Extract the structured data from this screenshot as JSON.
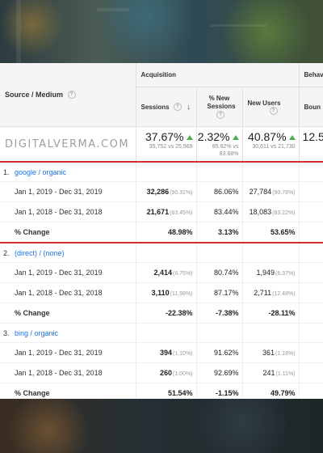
{
  "header": {
    "source_medium": "Source / Medium",
    "acquisition": "Acquisition",
    "behavior_partial": "Behavi",
    "sessions": "Sessions",
    "new_sessions": "% New Sessions",
    "new_users": "New Users",
    "bounce_partial": "Boun",
    "help": "?",
    "sort_arrow": "↓"
  },
  "brand": "DIGITALVERMA.COM",
  "totals": {
    "sessions": {
      "value": "37.67%",
      "sub": "35,752 vs 25,969"
    },
    "new_sessions": {
      "value": "2.32%",
      "sub1": "85.62% vs",
      "sub2": "83.68%"
    },
    "new_users": {
      "value": "40.87%",
      "sub": "30,611 vs 21,730"
    },
    "bounce": {
      "value": "12.5"
    }
  },
  "groups": [
    {
      "index": "1.",
      "name": "google / organic",
      "rows": [
        {
          "label": "Jan 1, 2019 - Dec 31, 2019",
          "sessions": "32,286",
          "sessions_pct": "(90.31%)",
          "new_sessions": "86.06%",
          "new_users": "27,784",
          "new_users_pct": "(90.76%)"
        },
        {
          "label": "Jan 1, 2018 - Dec 31, 2018",
          "sessions": "21,671",
          "sessions_pct": "(83.45%)",
          "new_sessions": "83.44%",
          "new_users": "18,083",
          "new_users_pct": "(83.22%)"
        }
      ],
      "change": {
        "label": "% Change",
        "sessions": "48.98%",
        "new_sessions": "3.13%",
        "new_users": "53.65%"
      }
    },
    {
      "index": "2.",
      "name": "(direct) / (none)",
      "rows": [
        {
          "label": "Jan 1, 2019 - Dec 31, 2019",
          "sessions": "2,414",
          "sessions_pct": "(6.75%)",
          "new_sessions": "80.74%",
          "new_users": "1,949",
          "new_users_pct": "(6.37%)"
        },
        {
          "label": "Jan 1, 2018 - Dec 31, 2018",
          "sessions": "3,110",
          "sessions_pct": "(11.98%)",
          "new_sessions": "87.17%",
          "new_users": "2,711",
          "new_users_pct": "(12.48%)"
        }
      ],
      "change": {
        "label": "% Change",
        "sessions": "-22.38%",
        "new_sessions": "-7.38%",
        "new_users": "-28.11%"
      }
    },
    {
      "index": "3.",
      "name": "bing / organic",
      "rows": [
        {
          "label": "Jan 1, 2019 - Dec 31, 2019",
          "sessions": "394",
          "sessions_pct": "(1.10%)",
          "new_sessions": "91.62%",
          "new_users": "361",
          "new_users_pct": "(1.18%)"
        },
        {
          "label": "Jan 1, 2018 - Dec 31, 2018",
          "sessions": "260",
          "sessions_pct": "(1.00%)",
          "new_sessions": "92.69%",
          "new_users": "241",
          "new_users_pct": "(1.11%)"
        }
      ],
      "change": {
        "label": "% Change",
        "sessions": "51.54%",
        "new_sessions": "-1.15%",
        "new_users": "49.79%"
      }
    }
  ],
  "colors": {
    "accent_red": "#d32f2f",
    "link_blue": "#1a73e8",
    "up_green": "#4caf50"
  },
  "icons": {
    "trend": "up-triangle-icon",
    "help": "help-circle-icon",
    "sort": "sort-down-arrow-icon"
  }
}
